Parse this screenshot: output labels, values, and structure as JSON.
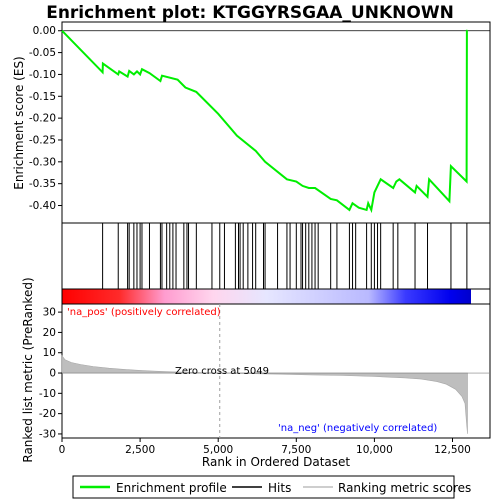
{
  "chart_data": {
    "type": "line",
    "title": "Enrichment plot: KTGGYRSGAA_UNKNOWN",
    "colors": {
      "es_line": "#00ee00",
      "hits": "#000000",
      "metric_fill": "#bebebe",
      "pos_color": "#ff0000",
      "neg_color": "#0000ff",
      "zero_cross_line": "#a0a0a0"
    },
    "es_panel": {
      "ylabel": "Enrichment score (ES)",
      "ylim": [
        -0.44,
        0.02
      ],
      "yticks": [
        0.0,
        -0.05,
        -0.1,
        -0.15,
        -0.2,
        -0.25,
        -0.3,
        -0.35,
        -0.4
      ],
      "ytick_labels": [
        "0.00",
        "-0.05",
        "-0.10",
        "-0.15",
        "-0.20",
        "-0.25",
        "-0.30",
        "-0.35",
        "-0.40"
      ],
      "points": [
        [
          0,
          0.0
        ],
        [
          1300,
          -0.095
        ],
        [
          1310,
          -0.075
        ],
        [
          1800,
          -0.1
        ],
        [
          1830,
          -0.093
        ],
        [
          2100,
          -0.105
        ],
        [
          2150,
          -0.092
        ],
        [
          2300,
          -0.1
        ],
        [
          2400,
          -0.093
        ],
        [
          2500,
          -0.1
        ],
        [
          2560,
          -0.088
        ],
        [
          2800,
          -0.097
        ],
        [
          3150,
          -0.115
        ],
        [
          3200,
          -0.103
        ],
        [
          3700,
          -0.112
        ],
        [
          3950,
          -0.13
        ],
        [
          4300,
          -0.14
        ],
        [
          5000,
          -0.19
        ],
        [
          5600,
          -0.24
        ],
        [
          6200,
          -0.275
        ],
        [
          6500,
          -0.3
        ],
        [
          7200,
          -0.34
        ],
        [
          7500,
          -0.345
        ],
        [
          7700,
          -0.355
        ],
        [
          7900,
          -0.36
        ],
        [
          8100,
          -0.36
        ],
        [
          8600,
          -0.385
        ],
        [
          8800,
          -0.388
        ],
        [
          9200,
          -0.41
        ],
        [
          9300,
          -0.395
        ],
        [
          9500,
          -0.405
        ],
        [
          9750,
          -0.41
        ],
        [
          9800,
          -0.395
        ],
        [
          9900,
          -0.41
        ],
        [
          10000,
          -0.37
        ],
        [
          10100,
          -0.355
        ],
        [
          10200,
          -0.34
        ],
        [
          10600,
          -0.36
        ],
        [
          10700,
          -0.345
        ],
        [
          10800,
          -0.34
        ],
        [
          11300,
          -0.37
        ],
        [
          11350,
          -0.355
        ],
        [
          11700,
          -0.38
        ],
        [
          11750,
          -0.34
        ],
        [
          12400,
          -0.39
        ],
        [
          12450,
          -0.31
        ],
        [
          12950,
          -0.345
        ],
        [
          12960,
          0.0
        ],
        [
          12980,
          0.0
        ]
      ]
    },
    "hits_panel": {
      "hit_ranks": [
        1300,
        1800,
        2100,
        2150,
        2300,
        2400,
        2500,
        2560,
        2800,
        3150,
        3200,
        3350,
        3450,
        3550,
        3650,
        3900,
        4000,
        4050,
        4300,
        4800,
        5050,
        5200,
        5550,
        5650,
        5700,
        5800,
        5950,
        6100,
        6200,
        6450,
        6500,
        6900,
        7200,
        7300,
        7500,
        7650,
        7700,
        7800,
        7900,
        8000,
        8100,
        8200,
        8600,
        8800,
        9200,
        9300,
        9400,
        9750,
        9900,
        10000,
        10100,
        10200,
        10600,
        10750,
        11300,
        11700,
        12450,
        12960
      ]
    },
    "metric_panel": {
      "ylabel": "Ranked list metric (PreRanked)",
      "xlabel": "Rank in Ordered Dataset",
      "xlim": [
        0,
        13700
      ],
      "ylim": [
        -32,
        34
      ],
      "xticks": [
        0,
        2500,
        5000,
        7500,
        10000,
        12500
      ],
      "xtick_labels": [
        "0",
        "2,500",
        "5,000",
        "7,500",
        "10,000",
        "12,500"
      ],
      "yticks": [
        30,
        20,
        10,
        0,
        -10,
        -20,
        -30
      ],
      "ytick_labels": [
        "30",
        "20",
        "10",
        "0",
        "-10",
        "-20",
        "-30"
      ],
      "zero_cross_rank": 5049,
      "zero_cross_label": "Zero cross at 5049",
      "pos_label": "'na_pos' (positively correlated)",
      "neg_label": "'na_neg' (negatively correlated)",
      "curve": [
        [
          0,
          8.5
        ],
        [
          100,
          6.5
        ],
        [
          300,
          5.2
        ],
        [
          600,
          4.2
        ],
        [
          1000,
          3.2
        ],
        [
          1500,
          2.4
        ],
        [
          2000,
          1.8
        ],
        [
          2500,
          1.3
        ],
        [
          3000,
          0.9
        ],
        [
          3500,
          0.6
        ],
        [
          4000,
          0.35
        ],
        [
          4500,
          0.15
        ],
        [
          5049,
          0.0
        ],
        [
          6000,
          -0.3
        ],
        [
          7000,
          -0.6
        ],
        [
          8000,
          -0.9
        ],
        [
          9000,
          -1.2
        ],
        [
          10000,
          -1.7
        ],
        [
          11000,
          -2.4
        ],
        [
          11500,
          -3.0
        ],
        [
          12000,
          -4.2
        ],
        [
          12300,
          -5.5
        ],
        [
          12600,
          -8.0
        ],
        [
          12800,
          -11.5
        ],
        [
          12900,
          -15.0
        ],
        [
          12950,
          -25.0
        ],
        [
          12980,
          -30.0
        ]
      ]
    },
    "legend": {
      "entries": [
        {
          "label": "Enrichment profile",
          "color": "#00ee00"
        },
        {
          "label": "Hits",
          "color": "#000000"
        },
        {
          "label": "Ranking metric scores",
          "color": "#bebebe"
        }
      ]
    }
  }
}
